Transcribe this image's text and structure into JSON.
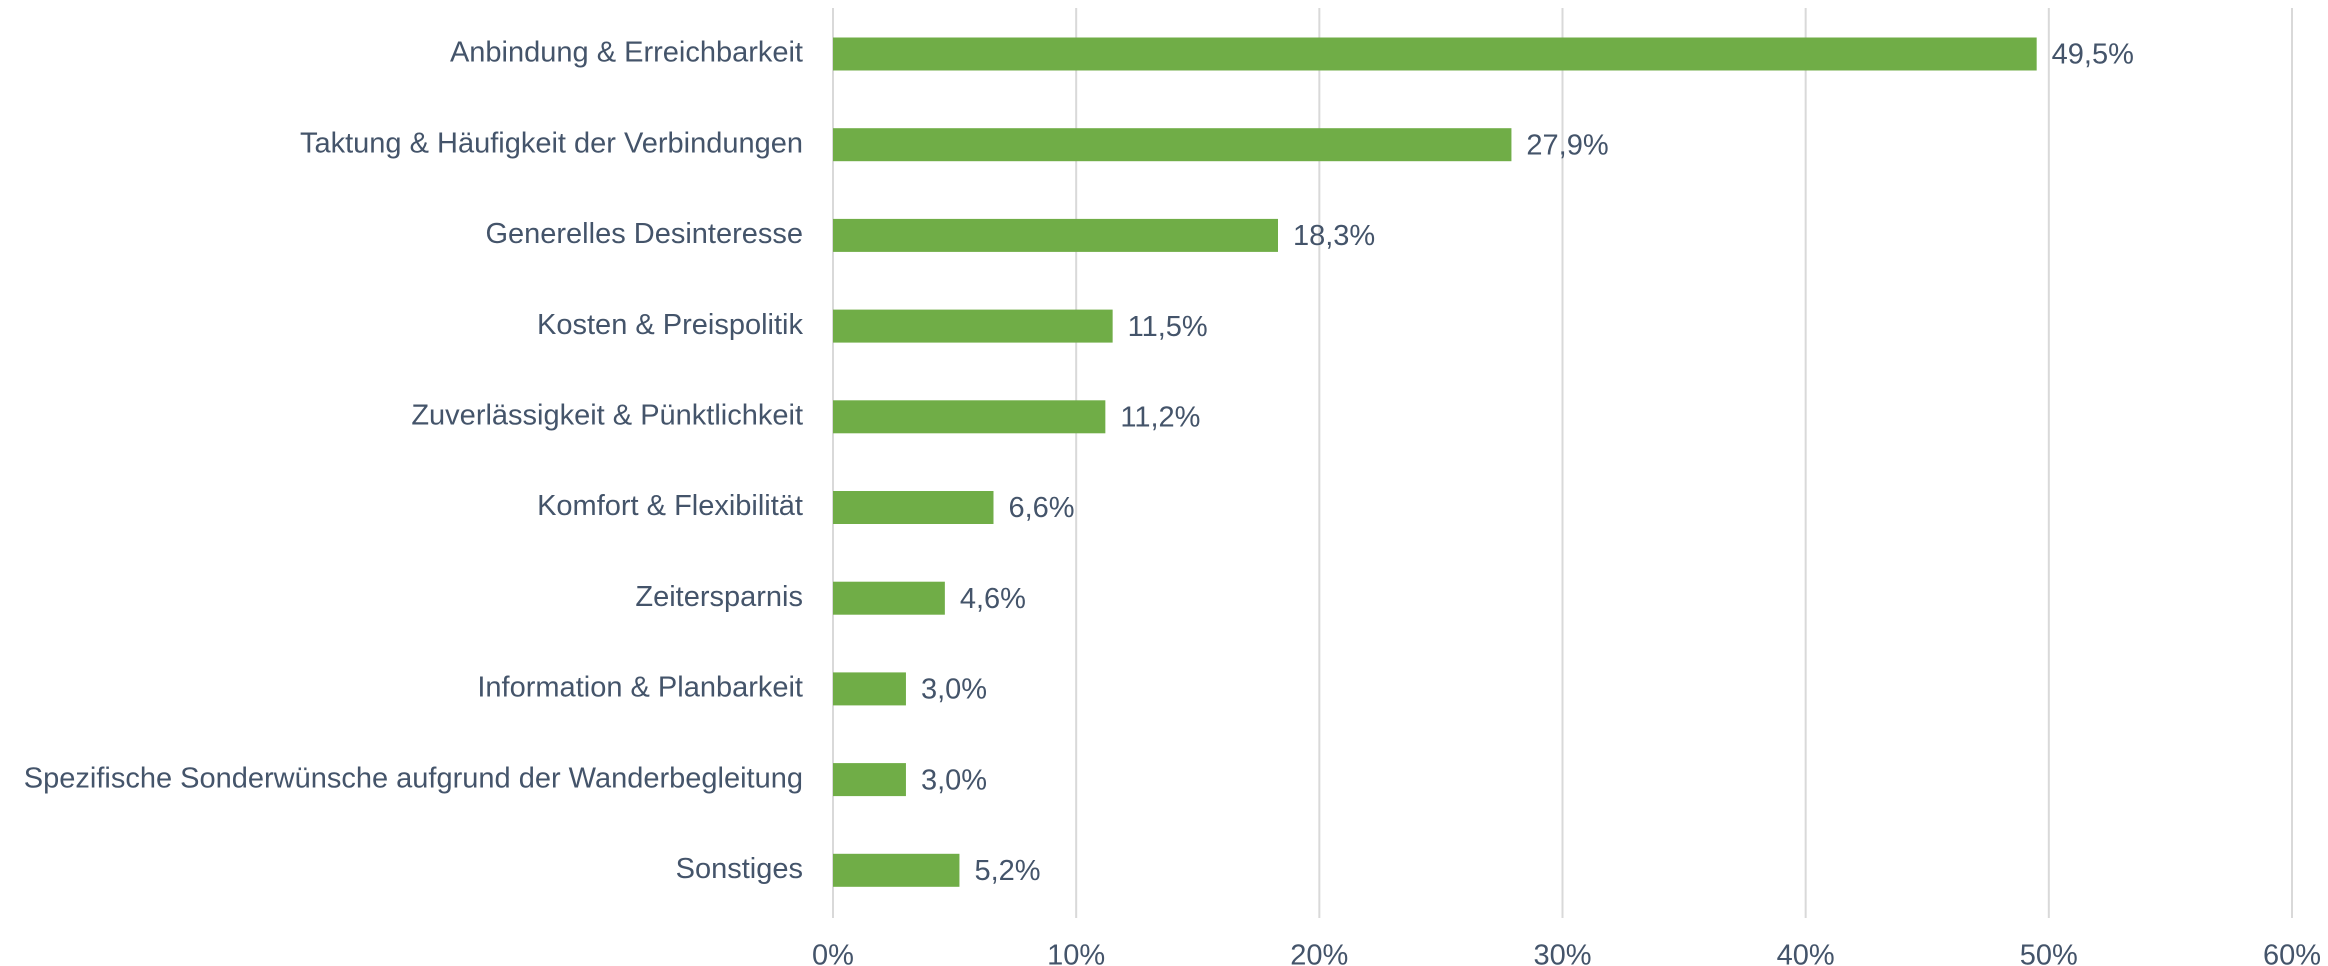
{
  "chart_data": {
    "type": "bar",
    "orientation": "horizontal",
    "categories": [
      "Anbindung & Erreichbarkeit",
      "Taktung & Häufigkeit der Verbindungen",
      "Generelles Desinteresse",
      "Kosten & Preispolitik",
      "Zuverlässigkeit & Pünktlichkeit",
      "Komfort & Flexibilität",
      "Zeitersparnis",
      "Information & Planbarkeit",
      "Spezifische Sonderwünsche aufgrund der Wanderbegleitung",
      "Sonstiges"
    ],
    "values": [
      49.5,
      27.9,
      18.3,
      11.5,
      11.2,
      6.6,
      4.6,
      3.0,
      3.0,
      5.2
    ],
    "value_labels": [
      "49,5%",
      "27,9%",
      "18,3%",
      "11,5%",
      "11,2%",
      "6,6%",
      "4,6%",
      "3,0%",
      "3,0%",
      "5,2%"
    ],
    "color": "#70ad47",
    "xlim": [
      0,
      60
    ],
    "xticks": [
      {
        "value": 0,
        "label": "0%"
      },
      {
        "value": 10,
        "label": "10%"
      },
      {
        "value": 20,
        "label": "20%"
      },
      {
        "value": 30,
        "label": "30%"
      },
      {
        "value": 40,
        "label": "40%"
      },
      {
        "value": 50,
        "label": "50%"
      },
      {
        "value": 60,
        "label": "60%"
      }
    ],
    "grid": true
  }
}
